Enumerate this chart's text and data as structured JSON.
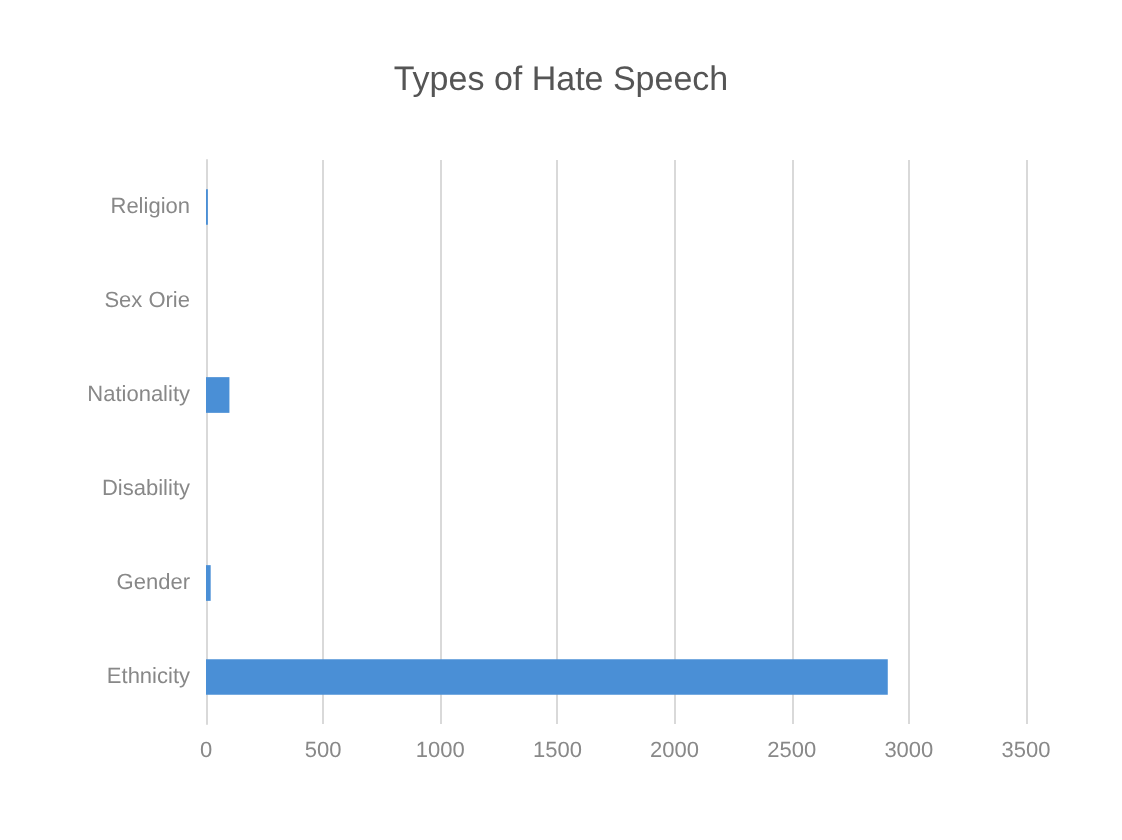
{
  "chart_data": {
    "type": "bar",
    "orientation": "horizontal",
    "title": "Types of Hate Speech",
    "categories": [
      "Religion",
      "Sex Orie",
      "Nationality",
      "Disability",
      "Gender",
      "Ethnicity"
    ],
    "values": [
      8,
      0,
      100,
      0,
      20,
      2910
    ],
    "color": "#4a8fd6",
    "xlim": [
      0,
      3500
    ],
    "xticks": [
      0,
      500,
      1000,
      1500,
      2000,
      2500,
      3000,
      3500
    ],
    "grid": "x"
  }
}
